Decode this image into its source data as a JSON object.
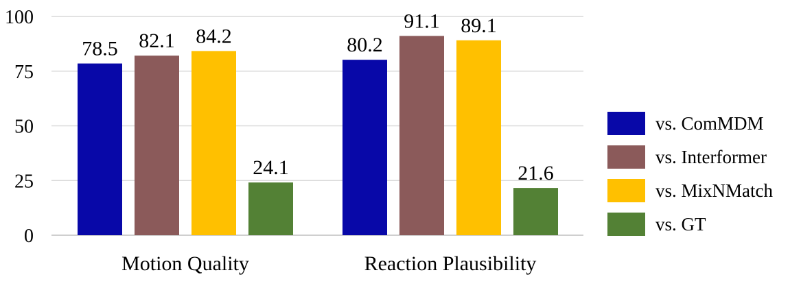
{
  "chart_data": {
    "type": "bar",
    "categories": [
      "Motion Quality",
      "Reaction Plausibility"
    ],
    "series": [
      {
        "name": "vs. ComMDM",
        "color": "#0808a8",
        "values": [
          78.5,
          80.2
        ]
      },
      {
        "name": "vs. Interformer",
        "color": "#8b5a5a",
        "values": [
          82.1,
          91.1
        ]
      },
      {
        "name": "vs. MixNMatch",
        "color": "#ffc000",
        "values": [
          84.2,
          89.1
        ]
      },
      {
        "name": "vs. GT",
        "color": "#538135",
        "values": [
          24.1,
          21.6
        ]
      }
    ],
    "title": "",
    "xlabel": "",
    "ylabel": "",
    "ylim": [
      0,
      100
    ],
    "yticks": [
      0,
      25,
      50,
      75,
      100
    ],
    "grid": true,
    "legend_position": "right"
  }
}
